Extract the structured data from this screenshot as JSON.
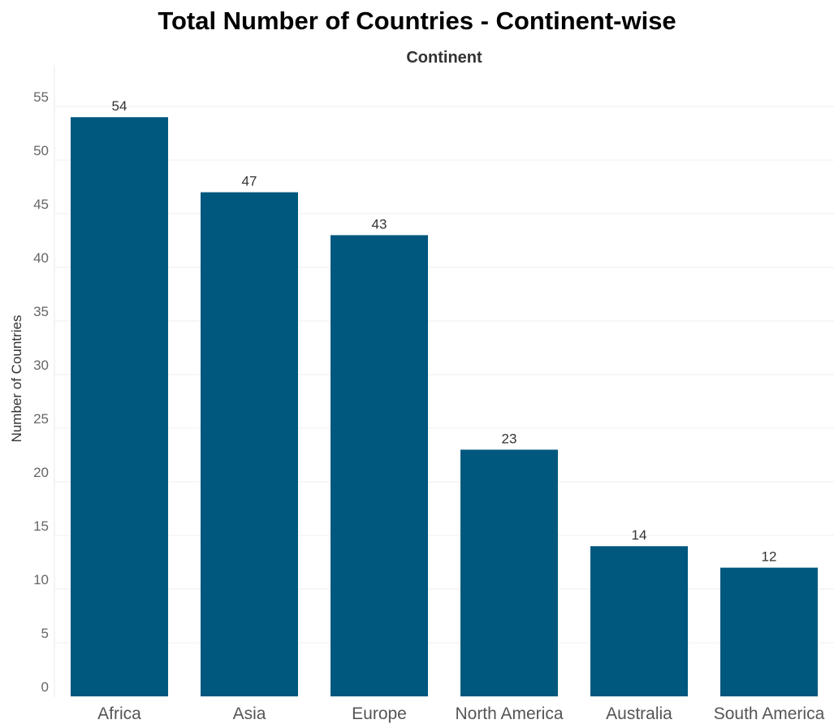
{
  "chart_data": {
    "type": "bar",
    "title": "Total Number of Countries - Continent-wise",
    "column_header": "Continent",
    "ylabel": "Number of Countries",
    "xlabel": "",
    "categories": [
      "Africa",
      "Asia",
      "Europe",
      "North America",
      "Australia",
      "South America"
    ],
    "values": [
      54,
      47,
      43,
      23,
      14,
      12
    ],
    "ylim": [
      0,
      58
    ],
    "yticks": [
      0,
      5,
      10,
      15,
      20,
      25,
      30,
      35,
      40,
      45,
      50,
      55
    ],
    "grid": true,
    "legend": "none",
    "bar_color": "#00587f"
  }
}
